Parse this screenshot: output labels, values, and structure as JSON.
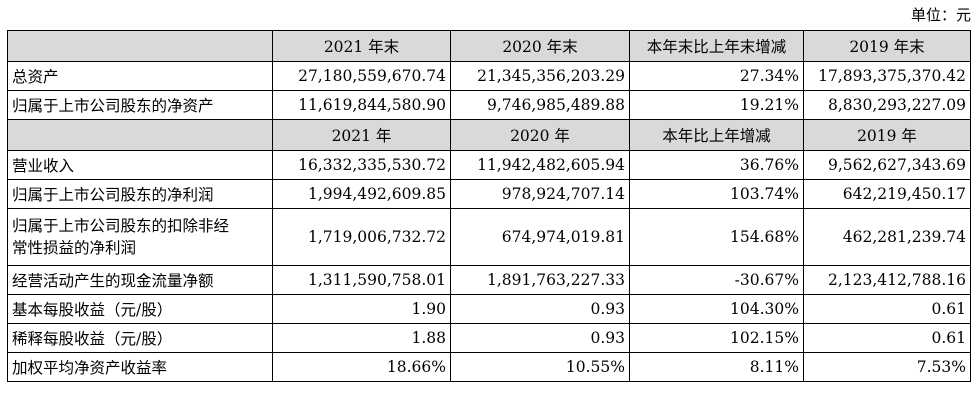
{
  "unit": "单位：元",
  "balance_header": [
    "2021 年末",
    "2020 年末",
    "本年末比上年末增减",
    "2019 年末"
  ],
  "balance_rows": [
    {
      "label": "总资产",
      "values": [
        "27,180,559,670.74",
        "21,345,356,203.29",
        "27.34%",
        "17,893,375,370.42"
      ]
    },
    {
      "label": "归属于上市公司股东的净资产",
      "values": [
        "11,619,844,580.90",
        "9,746,985,489.88",
        "19.21%",
        "8,830,293,227.09"
      ]
    }
  ],
  "income_header": [
    "2021 年",
    "2020 年",
    "本年比上年增减",
    "2019 年"
  ],
  "income_rows": [
    {
      "label": "营业收入",
      "values": [
        "16,332,335,530.72",
        "11,942,482,605.94",
        "36.76%",
        "9,562,627,343.69"
      ]
    },
    {
      "label": "归属于上市公司股东的净利润",
      "values": [
        "1,994,492,609.85",
        "978,924,707.14",
        "103.74%",
        "642,219,450.17"
      ]
    },
    {
      "label_line1": "归属于上市公司股东的扣除非经",
      "label_line2": "常性损益的净利润",
      "values": [
        "1,719,006,732.72",
        "674,974,019.81",
        "154.68%",
        "462,281,239.74"
      ]
    },
    {
      "label": "经营活动产生的现金流量净额",
      "values": [
        "1,311,590,758.01",
        "1,891,763,227.33",
        "-30.67%",
        "2,123,412,788.16"
      ]
    },
    {
      "label": "基本每股收益（元/股）",
      "values": [
        "1.90",
        "0.93",
        "104.30%",
        "0.61"
      ]
    },
    {
      "label": "稀释每股收益（元/股）",
      "values": [
        "1.88",
        "0.93",
        "102.15%",
        "0.61"
      ]
    },
    {
      "label": "加权平均净资产收益率",
      "values": [
        "18.66%",
        "10.55%",
        "8.11%",
        "7.53%"
      ]
    }
  ]
}
